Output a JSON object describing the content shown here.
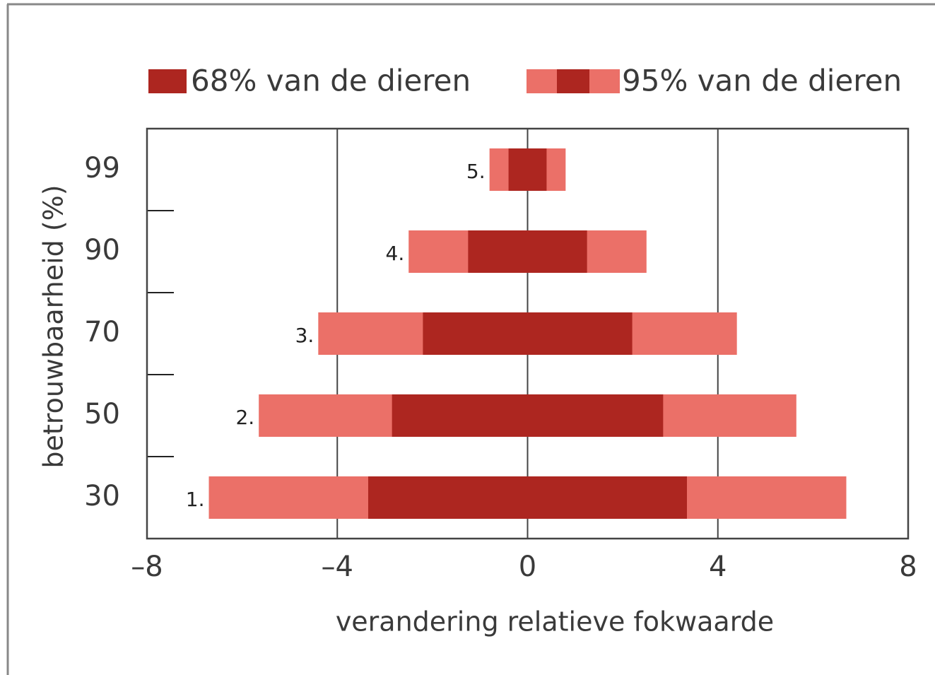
{
  "chart_data": {
    "type": "bar",
    "orientation": "horizontal",
    "xlabel": "verandering relatieve fokwaarde",
    "ylabel": "betrouwbaarheid (%)",
    "categories": [
      "99",
      "90",
      "70",
      "50",
      "30"
    ],
    "bar_labels": [
      "5.",
      "4.",
      "3.",
      "2.",
      "1."
    ],
    "series": [
      {
        "name": "95% van de dieren",
        "color": "#eb7068",
        "values": [
          [
            -0.8,
            0.8
          ],
          [
            -2.5,
            2.5
          ],
          [
            -4.4,
            4.4
          ],
          [
            -5.65,
            5.65
          ],
          [
            -6.7,
            6.7
          ]
        ]
      },
      {
        "name": "68% van de dieren",
        "color": "#ad2620",
        "values": [
          [
            -0.4,
            0.4
          ],
          [
            -1.25,
            1.25
          ],
          [
            -2.2,
            2.2
          ],
          [
            -2.85,
            2.85
          ],
          [
            -3.35,
            3.35
          ]
        ]
      }
    ],
    "xlim": [
      -8,
      8
    ],
    "xticks": [
      {
        "value": -8,
        "label": "–8"
      },
      {
        "value": -4,
        "label": "–4"
      },
      0,
      4,
      8
    ],
    "grid": true
  }
}
